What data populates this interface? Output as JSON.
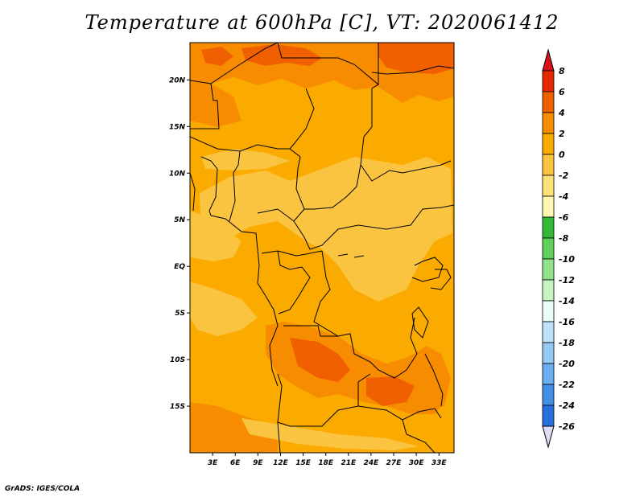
{
  "title": "Temperature at 600hPa [C], VT: 2020061412",
  "credit": "GrADS: IGES/COLA",
  "map": {
    "lon_range": [
      0,
      35
    ],
    "lat_range": [
      -20,
      24
    ],
    "lon_ticks": [
      {
        "value": 3,
        "label": "3E"
      },
      {
        "value": 6,
        "label": "6E"
      },
      {
        "value": 9,
        "label": "9E"
      },
      {
        "value": 12,
        "label": "12E"
      },
      {
        "value": 15,
        "label": "15E"
      },
      {
        "value": 18,
        "label": "18E"
      },
      {
        "value": 21,
        "label": "21E"
      },
      {
        "value": 24,
        "label": "24E"
      },
      {
        "value": 27,
        "label": "27E"
      },
      {
        "value": 30,
        "label": "30E"
      },
      {
        "value": 33,
        "label": "33E"
      }
    ],
    "lat_ticks": [
      {
        "value": 20,
        "label": "20N"
      },
      {
        "value": 15,
        "label": "15N"
      },
      {
        "value": 10,
        "label": "10N"
      },
      {
        "value": 5,
        "label": "5N"
      },
      {
        "value": 0,
        "label": "EQ"
      },
      {
        "value": -5,
        "label": "5S"
      },
      {
        "value": -10,
        "label": "10S"
      },
      {
        "value": -15,
        "label": "15S"
      }
    ]
  },
  "colorbar": {
    "labels": [
      "8",
      "6",
      "4",
      "2",
      "0",
      "-2",
      "-4",
      "-6",
      "-8",
      "-10",
      "-12",
      "-14",
      "-16",
      "-18",
      "-20",
      "-22",
      "-24",
      "-26"
    ],
    "colors": [
      "#e62a00",
      "#f06000",
      "#f88c00",
      "#fbaa00",
      "#fbc440",
      "#fde27a",
      "#fff8b0",
      "#33b838",
      "#5fd05a",
      "#92e48c",
      "#c6f4c0",
      "#eafffa",
      "#bfe2fb",
      "#96c8f4",
      "#6aaef0",
      "#4490e6",
      "#2670db",
      "#1550c2",
      "#0a32a0",
      "#0a1c7a",
      "#0a0c52",
      "#dcdcf6"
    ],
    "arrow_top_color": "#d8101a",
    "arrow_bottom_color": "#dcdcf6"
  }
}
